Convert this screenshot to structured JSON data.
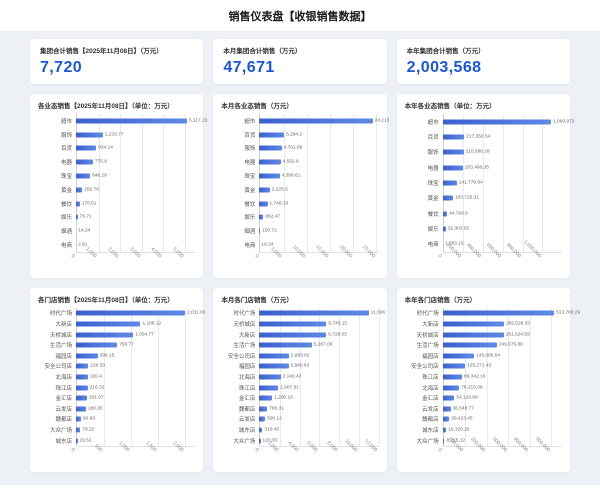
{
  "title": "销售仪表盘【收银销售数据】",
  "colors": {
    "accent": "#1A56DB",
    "bar_start": "#3C5FD0",
    "bar_end": "#5E8AE6",
    "panel_bg": "#EDF1F6"
  },
  "kpis": [
    {
      "label": "集团合计销售【2025年11月08日】（万元）",
      "value": "7,720"
    },
    {
      "label": "本月集团合计销售（万元）",
      "value": "47,671"
    },
    {
      "label": "本年集团合计销售（万元）",
      "value": "2,003,568"
    }
  ],
  "chart_data": [
    {
      "type": "bar",
      "orientation": "horizontal",
      "title": "各业态销售【2025年11月08日】（单位：万元）",
      "xlabel": "",
      "ylabel": "",
      "legend": "none",
      "grid": true,
      "categories": [
        "超市",
        "服饰",
        "百货",
        "电器",
        "珠宝",
        "黄金",
        "餐饮",
        "娱乐",
        "烟酒",
        "电商"
      ],
      "values": [
        5117.23,
        1233.77,
        934.14,
        775.9,
        648.29,
        292.76,
        170.51,
        76.71,
        14.24,
        2.91
      ],
      "value_labels": [
        "5,117.23",
        "1,233.77",
        "934.14",
        "775.9",
        "648.29",
        "292.76",
        "170.51",
        "76.71",
        "14.24",
        "2.91"
      ],
      "ticks": [
        0,
        1000,
        2000,
        3000,
        4000,
        5000
      ],
      "tick_labels": [
        "0",
        "1,000",
        "2,000",
        "3,000",
        "4,000",
        "5,000"
      ],
      "axis_max": 5500
    },
    {
      "type": "bar",
      "orientation": "horizontal",
      "title": "本月各业态销售（万元）",
      "xlabel": "",
      "ylabel": "",
      "legend": "none",
      "grid": true,
      "categories": [
        "超市",
        "百货",
        "服饰",
        "电器",
        "珠宝",
        "黄金",
        "餐饮",
        "娱乐",
        "烟酒",
        "电商"
      ],
      "values": [
        24213,
        5294.2,
        4761.09,
        4562.8,
        4358.61,
        2225.5,
        1746.33,
        862.47,
        150.72,
        19.24
      ],
      "value_labels": [
        "24,213",
        "5,294.2",
        "4,761.09",
        "4,562.8",
        "4,358.61",
        "2,225.5",
        "1,746.33",
        "862.47",
        "150.72",
        "19.24"
      ],
      "ticks": [
        0,
        5000,
        10000,
        15000,
        20000,
        25000
      ],
      "tick_labels": [
        "0",
        "5,000",
        "10,000",
        "15,000",
        "20,000",
        "25,000"
      ],
      "axis_max": 25500
    },
    {
      "type": "bar",
      "orientation": "horizontal",
      "title": "本年各业态销售（单位：万元）",
      "xlabel": "",
      "ylabel": "",
      "legend": "none",
      "grid": true,
      "categories": [
        "超市",
        "百货",
        "服饰",
        "电器",
        "珠宝",
        "黄金",
        "餐饮",
        "娱乐",
        "电商"
      ],
      "values": [
        1090972,
        217350.54,
        210586.28,
        203466.35,
        141779.84,
        103725.31,
        44766.9,
        32303.92,
        1583.15
      ],
      "value_labels": [
        "1,090,972",
        "217,350.54",
        "210,586.28",
        "203,466.35",
        "141,779.84",
        "103,725.31",
        "44,766.9",
        "32,303.92",
        "1,583.15"
      ],
      "ticks": [
        0,
        200000,
        400000,
        600000,
        800000,
        1000000
      ],
      "tick_labels": [
        "0",
        "200,000",
        "400,000",
        "600,000",
        "800,000",
        "1,000,000"
      ],
      "axis_max": 1200000
    },
    {
      "type": "bar",
      "orientation": "horizontal",
      "title": "各门店销售【2025年11月08日】（单位：万元）",
      "xlabel": "",
      "ylabel": "",
      "legend": "none",
      "grid": true,
      "categories": [
        "时代广场",
        "大新店",
        "天桥城店",
        "生活广场",
        "福园店",
        "安全公司店",
        "北海店",
        "珠江店",
        "金汇店",
        "云发店",
        "魏都店",
        "大众广场",
        "城东店"
      ],
      "values": [
        2011.03,
        1188.12,
        1054.77,
        758.77,
        398.15,
        226.53,
        220.4,
        216.32,
        201.97,
        180.35,
        90.93,
        79.22,
        29.51
      ],
      "value_labels": [
        "2,011.03",
        "1,188.12",
        "1,054.77",
        "758.77",
        "398.15",
        "226.53",
        "220.4",
        "216.32",
        "201.97",
        "180.35",
        "90.93",
        "79.22",
        "29.51"
      ],
      "ticks": [
        0,
        500,
        1000,
        1500,
        2000
      ],
      "tick_labels": [
        "0",
        "500",
        "1,000",
        "1,500",
        "2,000"
      ],
      "axis_max": 2200
    },
    {
      "type": "bar",
      "orientation": "horizontal",
      "title": "本月各门店销售（万元）",
      "xlabel": "",
      "ylabel": "",
      "legend": "none",
      "grid": true,
      "categories": [
        "时代广场",
        "天桥城店",
        "大新店",
        "生活广场",
        "安全公司店",
        "福园店",
        "北海店",
        "珠江店",
        "金汇店",
        "魏都店",
        "云发店",
        "城东店",
        "大众广场"
      ],
      "values": [
        11006,
        6745.15,
        6728.05,
        5267.06,
        2963.82,
        2940.63,
        2140.42,
        1907.61,
        1290.18,
        796.31,
        590.12,
        310.45,
        120.33
      ],
      "value_labels": [
        "11,006",
        "6,745.15",
        "6,728.05",
        "5,267.06",
        "2,963.82",
        "2,940.63",
        "2,140.42",
        "1,907.61",
        "1,290.18",
        "796.31",
        "590.12",
        "310.45",
        "120.33"
      ],
      "ticks": [
        0,
        2000,
        4000,
        6000,
        8000,
        10000,
        12000
      ],
      "tick_labels": [
        "0",
        "2,000",
        "4,000",
        "6,000",
        "8,000",
        "10,000",
        "12,000"
      ],
      "axis_max": 12000
    },
    {
      "type": "bar",
      "orientation": "horizontal",
      "title": "本年各门店销售（万元）",
      "xlabel": "",
      "ylabel": "",
      "legend": "none",
      "grid": true,
      "categories": [
        "时代广场",
        "大新店",
        "天桥城店",
        "生活广场",
        "福园店",
        "安全公司店",
        "珠江店",
        "北海店",
        "金汇店",
        "云发店",
        "魏都店",
        "城东店",
        "大众广场"
      ],
      "values": [
        513780.29,
        282528.33,
        281524.59,
        249675.88,
        145080.54,
        103271.43,
        89342.16,
        76215.08,
        54120.66,
        36548.77,
        30423.45,
        16320.25,
        8215.12
      ],
      "value_labels": [
        "513,780.29",
        "282,528.33",
        "281,524.59",
        "249,675.88",
        "145,080.54",
        "103,271.43",
        "89,342.16",
        "76,215.08",
        "54,120.66",
        "36,548.77",
        "30,423.45",
        "16,320.25",
        "8,215.12"
      ],
      "ticks": [
        0,
        100000,
        200000,
        300000,
        400000,
        500000
      ],
      "tick_labels": [
        "0",
        "100,000",
        "200,000",
        "300,000",
        "400,000",
        "500,000"
      ],
      "axis_max": 550000
    }
  ]
}
